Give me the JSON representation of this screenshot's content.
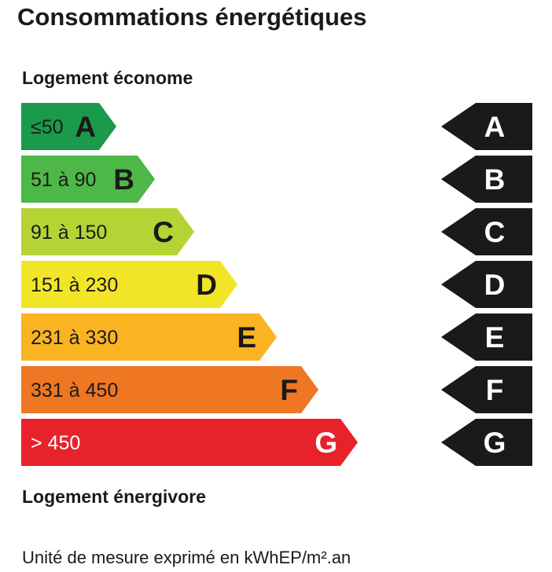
{
  "title": "Consommations énergétiques",
  "top_label": "Logement économe",
  "bottom_label": "Logement énergivore",
  "footer": "Unité de mesure exprimé en kWhEP/m².an",
  "chart_data": {
    "type": "bar",
    "title": "Consommations énergétiques",
    "classes": [
      {
        "letter": "A",
        "range": "≤50",
        "color": "#1a9a4a"
      },
      {
        "letter": "B",
        "range": "51 à 90",
        "color": "#4db848"
      },
      {
        "letter": "C",
        "range": "91 à 150",
        "color": "#b5d334"
      },
      {
        "letter": "D",
        "range": "151 à 230",
        "color": "#f2e527"
      },
      {
        "letter": "E",
        "range": "231 à 330",
        "color": "#fbb421"
      },
      {
        "letter": "F",
        "range": "331 à 450",
        "color": "#ef7623"
      },
      {
        "letter": "G",
        "range": "> 450",
        "color": "#e8222b"
      }
    ],
    "marker_color": "#1a1a1a"
  }
}
